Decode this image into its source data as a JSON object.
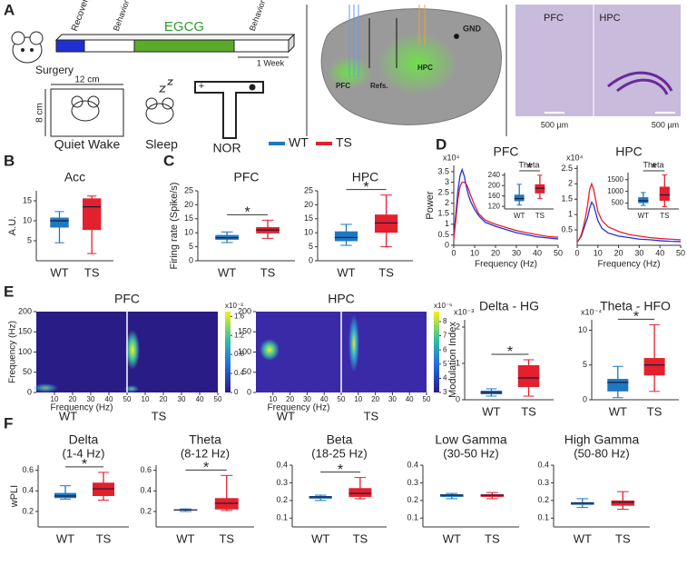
{
  "panel_labels": [
    "A",
    "B",
    "C",
    "D",
    "E",
    "F"
  ],
  "legend": {
    "labels": [
      "WT",
      "TS"
    ],
    "colors": [
      "#1f78c1",
      "#e3202d"
    ]
  },
  "panel_a": {
    "timeline": [
      "Recovery",
      "Behavior & Recording",
      "EGCG",
      "Behavior & Recording"
    ],
    "duration": "1 Week",
    "surgery": "Surgery",
    "arena_width": "12 cm",
    "arena_height": "8 cm",
    "conditions": [
      "Quiet Wake",
      "Sleep",
      "NOR"
    ],
    "nor_marker": "+",
    "brain_labels": [
      "GND",
      "PFC",
      "Refs.",
      "HPC"
    ],
    "histology_labels": [
      "PFC",
      "HPC"
    ],
    "scale_bars": [
      "500 µm",
      "500 µm"
    ]
  },
  "panel_e": {
    "ylabel": "Modulation Index"
  },
  "heatmaps": [
    {
      "title": "PFC",
      "groups": [
        "WT",
        "TS"
      ],
      "xlabel": "Frequency (Hz)",
      "ylabel": "Frequency (Hz)",
      "xlim": [
        0,
        50
      ],
      "xticks": [
        10,
        20,
        30,
        40,
        50
      ],
      "ylim": [
        0,
        200
      ],
      "yticks": [
        0,
        50,
        100,
        150,
        200
      ],
      "clim": [
        0,
        1.7
      ],
      "cticks": [
        0,
        0.4,
        0.8,
        1.2,
        1.6
      ],
      "scale_label": "x10⁻³"
    },
    {
      "title": "HPC",
      "groups": [
        "WT",
        "TS"
      ],
      "xlabel": "Frequency (Hz)",
      "xlim": [
        0,
        50
      ],
      "xticks": [
        10,
        20,
        30,
        40,
        50
      ],
      "ylim": [
        0,
        200
      ],
      "yticks": [
        0,
        50,
        100,
        150,
        200
      ],
      "clim": [
        3,
        8.7
      ],
      "cticks": [
        3,
        4,
        5,
        6,
        7,
        8
      ],
      "scale_label": "x10⁻⁶"
    }
  ],
  "chart_data": [
    {
      "type": "box",
      "title": "Acc",
      "ylabel": "A.U.",
      "categories": [
        "WT",
        "TS"
      ],
      "ylim": [
        0,
        17.5
      ],
      "yticks": [
        5,
        10,
        15
      ],
      "values": [
        [
          4.5,
          8.3,
          10,
          10.8,
          12.3
        ],
        [
          1.8,
          7.7,
          13.5,
          15.6,
          16.2
        ]
      ]
    },
    {
      "type": "box",
      "title": "PFC",
      "ylabel": "Firing rate (Spike/s)",
      "categories": [
        "WT",
        "TS"
      ],
      "ylim": [
        0,
        25
      ],
      "yticks": [
        0,
        5,
        10,
        15,
        20,
        25
      ],
      "annotation": "*",
      "values": [
        [
          6.5,
          7.5,
          8.2,
          9.2,
          10.3
        ],
        [
          8,
          9.8,
          11,
          12,
          14.5
        ]
      ]
    },
    {
      "type": "box",
      "title": "HPC",
      "categories": [
        "WT",
        "TS"
      ],
      "ylim": [
        0,
        25
      ],
      "yticks": [
        0,
        5,
        10,
        15,
        20,
        25
      ],
      "annotation": "*",
      "values": [
        [
          5.5,
          7,
          8.3,
          10.5,
          13
        ],
        [
          5,
          10,
          13.5,
          16.5,
          23.5
        ]
      ]
    },
    {
      "type": "line",
      "title": "PFC",
      "ylabel": "Power",
      "xlabel": "Frequency (Hz)",
      "scale_label": "x10⁴",
      "xlim": [
        0,
        50
      ],
      "xticks": [
        0,
        10,
        20,
        30,
        40,
        50
      ],
      "ylim": [
        0,
        3.8
      ],
      "yticks": [
        0,
        0.5,
        1,
        1.5,
        2,
        2.5,
        3,
        3.5
      ],
      "x": [
        0,
        1,
        2,
        3,
        4,
        5,
        6,
        7,
        8,
        10,
        12,
        15,
        20,
        25,
        30,
        35,
        40,
        45,
        50
      ],
      "series": [
        {
          "color": "#2030e0",
          "values": [
            0.4,
            1.5,
            2.6,
            3.3,
            3.6,
            3.3,
            2.8,
            2.4,
            2.1,
            1.7,
            1.4,
            1.1,
            0.9,
            0.75,
            0.6,
            0.5,
            0.4,
            0.35,
            0.3
          ]
        },
        {
          "color": "#e3202d",
          "values": [
            0.3,
            1.2,
            2.2,
            2.8,
            3.0,
            3.0,
            2.9,
            2.7,
            2.4,
            1.9,
            1.5,
            1.2,
            1.0,
            0.85,
            0.7,
            0.6,
            0.5,
            0.42,
            0.38
          ]
        }
      ]
    },
    {
      "type": "box",
      "title": "Theta",
      "categories": [
        "WT",
        "TS"
      ],
      "ylim": [
        110,
        250
      ],
      "yticks": [
        120,
        160,
        200,
        240
      ],
      "annotation": "*",
      "values": [
        [
          125,
          140,
          150,
          165,
          205
        ],
        [
          150,
          170,
          190,
          205,
          240
        ]
      ]
    },
    {
      "type": "line",
      "title": "HPC",
      "xlabel": "Frequency (Hz)",
      "scale_label": "x10⁴",
      "xlim": [
        0,
        50
      ],
      "xticks": [
        0,
        10,
        20,
        30,
        40,
        50
      ],
      "ylim": [
        0,
        2.6
      ],
      "yticks": [
        0.5,
        1,
        1.5,
        2,
        2.5
      ],
      "x": [
        0,
        1,
        2,
        3,
        4,
        5,
        6,
        7,
        8,
        10,
        12,
        15,
        20,
        25,
        30,
        35,
        40,
        45,
        50
      ],
      "series": [
        {
          "color": "#2030e0",
          "values": [
            0.1,
            0.2,
            0.3,
            0.5,
            0.7,
            0.9,
            1.2,
            1.4,
            1.3,
            0.8,
            0.55,
            0.4,
            0.3,
            0.25,
            0.2,
            0.18,
            0.15,
            0.13,
            0.12
          ]
        },
        {
          "color": "#e3202d",
          "values": [
            0.1,
            0.2,
            0.35,
            0.6,
            0.9,
            1.3,
            1.8,
            2.0,
            1.8,
            1.1,
            0.8,
            0.6,
            0.45,
            0.35,
            0.3,
            0.25,
            0.22,
            0.2,
            0.18
          ]
        }
      ]
    },
    {
      "type": "box",
      "title": "Theta",
      "categories": [
        "WT",
        "TS"
      ],
      "ylim": [
        250,
        1800
      ],
      "yticks": [
        500,
        1000,
        1500
      ],
      "annotation": "*",
      "values": [
        [
          400,
          500,
          600,
          750,
          950
        ],
        [
          350,
          600,
          850,
          1200,
          1700
        ]
      ]
    },
    {
      "type": "box",
      "title": "Delta - HG",
      "scale_label": "x10⁻³",
      "categories": [
        "WT",
        "TS"
      ],
      "ylim": [
        0,
        2.2
      ],
      "yticks": [
        0,
        1,
        2
      ],
      "annotation": "*",
      "values": [
        [
          0.1,
          0.15,
          0.2,
          0.25,
          0.3
        ],
        [
          0.1,
          0.35,
          0.6,
          0.95,
          1.1
        ]
      ]
    },
    {
      "type": "box",
      "title": "Theta - HFO",
      "scale_label": "x10⁻⁴",
      "categories": [
        "WT",
        "TS"
      ],
      "ylim": [
        0,
        11.5
      ],
      "yticks": [
        0,
        5,
        10
      ],
      "annotation": "*",
      "values": [
        [
          0.3,
          1.2,
          2.5,
          3,
          4.8
        ],
        [
          1.2,
          3.5,
          5,
          6,
          10.8
        ]
      ]
    },
    {
      "type": "box",
      "title": "Delta",
      "subtitle": "(1-4 Hz)",
      "ylabel": "wPLI",
      "categories": [
        "WT",
        "TS"
      ],
      "ylim": [
        0.05,
        0.65
      ],
      "yticks": [
        0.2,
        0.4,
        0.6
      ],
      "annotation": "*",
      "values": [
        [
          0.32,
          0.33,
          0.35,
          0.38,
          0.45
        ],
        [
          0.31,
          0.35,
          0.42,
          0.48,
          0.58
        ]
      ]
    },
    {
      "type": "box",
      "title": "Theta",
      "subtitle": "(8-12 Hz)",
      "categories": [
        "WT",
        "TS"
      ],
      "ylim": [
        0.05,
        0.65
      ],
      "yticks": [
        0.2,
        0.4,
        0.6
      ],
      "annotation": "*",
      "values": [
        [
          0.2,
          0.21,
          0.215,
          0.22,
          0.225
        ],
        [
          0.21,
          0.22,
          0.28,
          0.33,
          0.55
        ]
      ]
    },
    {
      "type": "box",
      "title": "Beta",
      "subtitle": "(18-25 Hz)",
      "categories": [
        "WT",
        "TS"
      ],
      "ylim": [
        0.05,
        0.4
      ],
      "yticks": [
        0.1,
        0.2,
        0.3,
        0.4
      ],
      "annotation": "*",
      "values": [
        [
          0.2,
          0.21,
          0.22,
          0.225,
          0.23
        ],
        [
          0.21,
          0.22,
          0.24,
          0.27,
          0.33
        ]
      ]
    },
    {
      "type": "box",
      "title": "Low Gamma",
      "subtitle": "(30-50 Hz)",
      "categories": [
        "WT",
        "TS"
      ],
      "ylim": [
        0.05,
        0.4
      ],
      "yticks": [
        0.1,
        0.2,
        0.3,
        0.4
      ],
      "values": [
        [
          0.21,
          0.22,
          0.23,
          0.235,
          0.24
        ],
        [
          0.21,
          0.22,
          0.23,
          0.235,
          0.245
        ]
      ]
    },
    {
      "type": "box",
      "title": "High Gamma",
      "subtitle": "(50-80 Hz)",
      "categories": [
        "WT",
        "TS"
      ],
      "ylim": [
        0.05,
        0.4
      ],
      "yticks": [
        0.1,
        0.2,
        0.3,
        0.4
      ],
      "values": [
        [
          0.16,
          0.175,
          0.185,
          0.19,
          0.21
        ],
        [
          0.15,
          0.17,
          0.19,
          0.2,
          0.25
        ]
      ]
    }
  ]
}
